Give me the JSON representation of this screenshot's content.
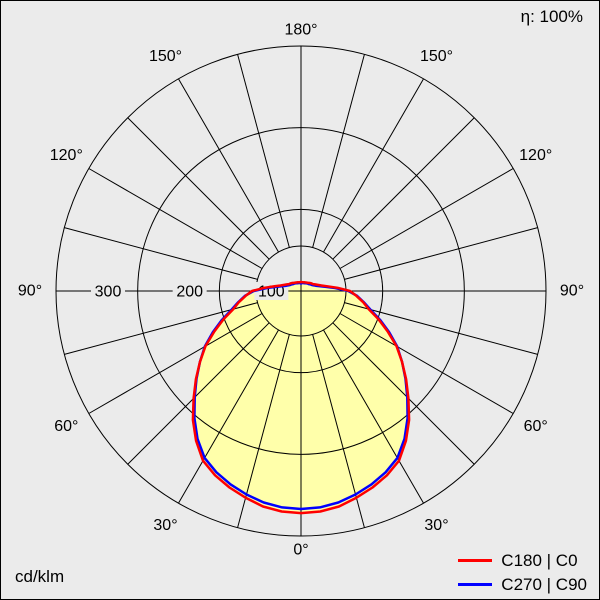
{
  "meta": {
    "efficiency": "η: 100%",
    "unit": "cd/klm"
  },
  "legend": [
    {
      "label": "C180 | C0",
      "color": "#ff0000"
    },
    {
      "label": "C270 | C90",
      "color": "#0000ff"
    }
  ],
  "chart_data": {
    "type": "polar-line",
    "unit": "cd/klm",
    "efficiency_percent": 100,
    "radial_axis": {
      "ticks": [
        100,
        200,
        300
      ],
      "max": 300
    },
    "angle_axis": {
      "labels_deg": [
        0,
        30,
        60,
        90,
        120,
        150,
        180
      ],
      "spoke_step_deg": 15,
      "zero_position": "bottom",
      "symmetric": true
    },
    "fill_color": "#ffffaa",
    "series": [
      {
        "name": "C180 | C0",
        "color": "#ff0000",
        "angles_deg": [
          0,
          5,
          10,
          15,
          20,
          25,
          30,
          35,
          40,
          45,
          50,
          55,
          60,
          65,
          70,
          75,
          80,
          85,
          90,
          95,
          100,
          105,
          110,
          115,
          120,
          125,
          130,
          135,
          140,
          145,
          150,
          155,
          160,
          165,
          170,
          175,
          180
        ],
        "values": [
          272,
          271,
          268,
          262,
          256,
          249,
          240,
          224,
          206,
          186,
          168,
          151,
          135,
          117,
          101,
          86,
          77,
          68,
          60,
          45,
          33,
          26,
          22,
          19,
          17,
          16,
          15,
          14,
          13,
          12.5,
          12,
          11.6,
          11.3,
          11,
          11,
          11,
          11
        ]
      },
      {
        "name": "C270 | C90",
        "color": "#0000ff",
        "angles_deg": [
          0,
          5,
          10,
          15,
          20,
          25,
          30,
          35,
          40,
          45,
          50,
          55,
          60,
          65,
          70,
          75,
          80,
          85,
          90,
          95,
          100,
          105,
          110,
          115,
          120,
          125,
          130,
          135,
          140,
          145,
          150,
          155,
          160,
          165,
          170,
          175,
          180
        ],
        "values": [
          267,
          266,
          263,
          258,
          252,
          245,
          236,
          221,
          203,
          184,
          167,
          151,
          136,
          119,
          103,
          88,
          78,
          69,
          58,
          42,
          30,
          23,
          19,
          16.5,
          15,
          14,
          13,
          12.5,
          12,
          11.5,
          11,
          10.6,
          10.3,
          10,
          10,
          10,
          9
        ]
      }
    ]
  }
}
